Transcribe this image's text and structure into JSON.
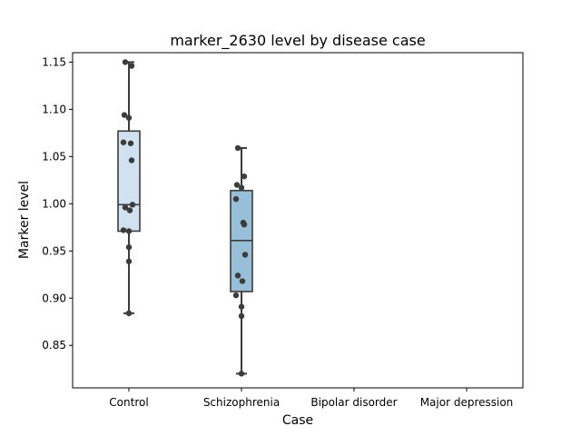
{
  "chart_data": {
    "type": "box",
    "title": "marker_2630 level by disease case",
    "xlabel": "Case",
    "ylabel": "Marker level",
    "categories": [
      "Control",
      "Schizophrenia",
      "Bipolar disorder",
      "Major depression"
    ],
    "ylim": [
      0.805,
      1.16
    ],
    "yticks": [
      0.85,
      0.9,
      0.95,
      1.0,
      1.05,
      1.1,
      1.15
    ],
    "ytick_labels": [
      "0.85",
      "0.90",
      "0.95",
      "1.00",
      "1.05",
      "1.10",
      "1.15"
    ],
    "grid": false,
    "colors": {
      "Control": "#d2e1f0",
      "Schizophrenia": "#97bfd7",
      "box_edge": "#3c3c3c",
      "point": "#3c3c3c"
    },
    "boxes": [
      {
        "category": "Control",
        "min": 0.884,
        "q1": 0.971,
        "median": 0.999,
        "q3": 1.077,
        "max": 1.15
      },
      {
        "category": "Schizophrenia",
        "min": 0.82,
        "q1": 0.907,
        "median": 0.961,
        "q3": 1.014,
        "max": 1.059
      }
    ],
    "points": [
      {
        "category": "Control",
        "values": [
          1.15,
          1.146,
          1.094,
          1.091,
          1.065,
          1.064,
          1.046,
          0.999,
          0.996,
          0.993,
          0.972,
          0.971,
          0.954,
          0.939,
          0.884
        ]
      },
      {
        "category": "Schizophrenia",
        "values": [
          1.059,
          1.029,
          1.02,
          1.017,
          1.005,
          0.98,
          0.978,
          0.946,
          0.924,
          0.918,
          0.903,
          0.891,
          0.881,
          0.82
        ]
      }
    ]
  }
}
